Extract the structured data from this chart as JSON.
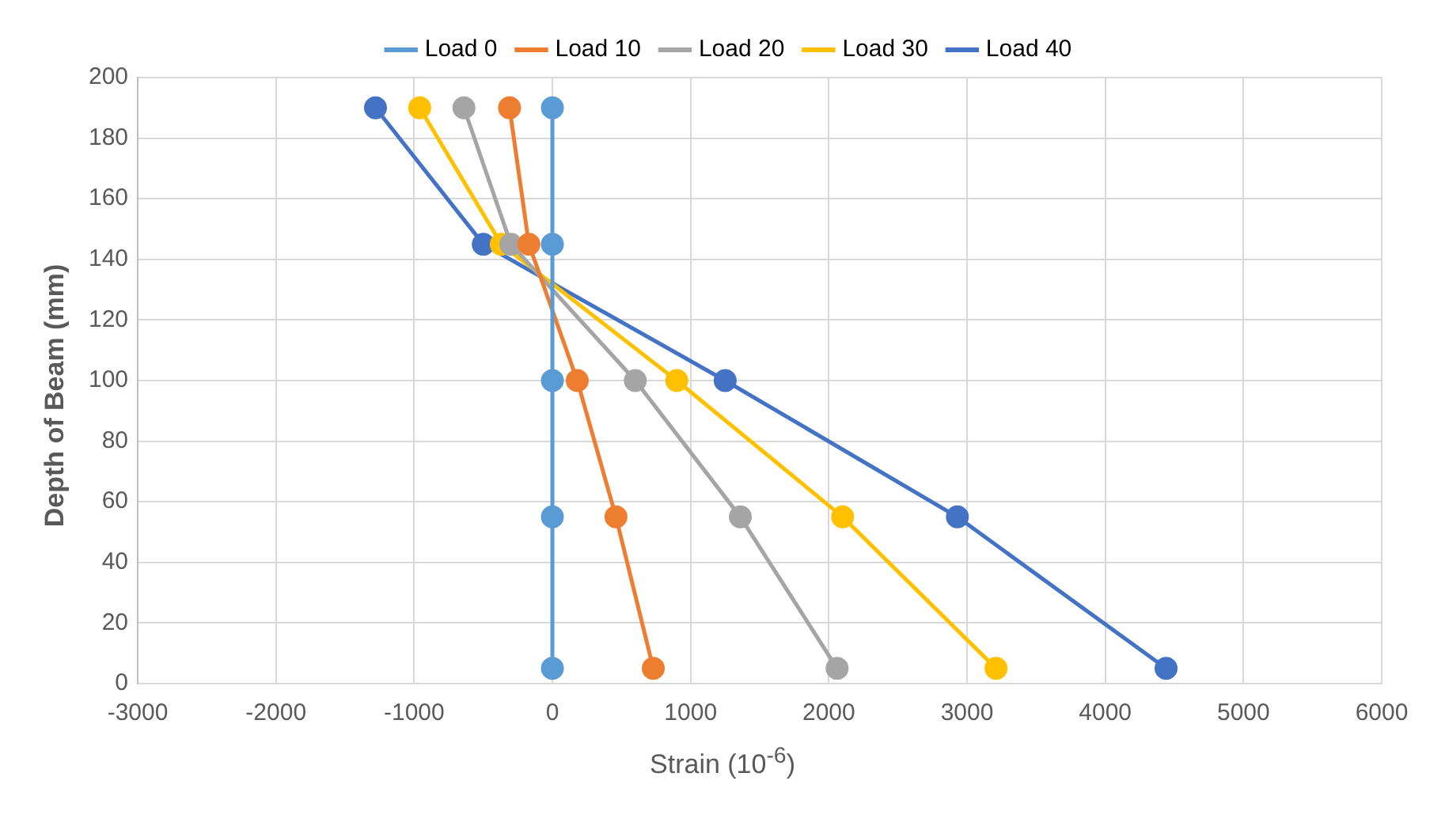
{
  "chart_data": {
    "type": "line",
    "xlabel": "Strain (10$^{-6}$)",
    "ylabel": "Depth of Beam (mm)",
    "series": [
      {
        "name": "Load 0",
        "color": "#5b9bd5",
        "x": [
          0,
          0,
          0,
          0,
          0
        ],
        "values": [
          190,
          145,
          100,
          55,
          5
        ]
      },
      {
        "name": "Load 10",
        "color": "#ed7d31",
        "x": [
          -310,
          -170,
          180,
          460,
          730
        ],
        "values": [
          190,
          145,
          100,
          55,
          5
        ]
      },
      {
        "name": "Load 20",
        "color": "#a5a5a5",
        "x": [
          -640,
          -300,
          600,
          1360,
          2060
        ],
        "values": [
          190,
          145,
          100,
          55,
          5
        ]
      },
      {
        "name": "Load 30",
        "color": "#ffc000",
        "x": [
          -960,
          -370,
          900,
          2100,
          3210
        ],
        "values": [
          190,
          145,
          100,
          55,
          5
        ]
      },
      {
        "name": "Load 40",
        "color": "#4472c4",
        "x": [
          -1280,
          -500,
          1250,
          2930,
          4440
        ],
        "values": [
          190,
          145,
          100,
          55,
          5
        ]
      }
    ],
    "xlim": [
      -3000,
      6000
    ],
    "xticks": [
      -3000,
      -2000,
      -1000,
      0,
      1000,
      2000,
      3000,
      4000,
      5000,
      6000
    ],
    "ylim": [
      0,
      200
    ],
    "yticks": [
      0,
      20,
      40,
      60,
      80,
      100,
      120,
      140,
      160,
      180,
      200
    ],
    "grid": true,
    "legend": "top",
    "marker": "circle",
    "line_style": "solid"
  }
}
